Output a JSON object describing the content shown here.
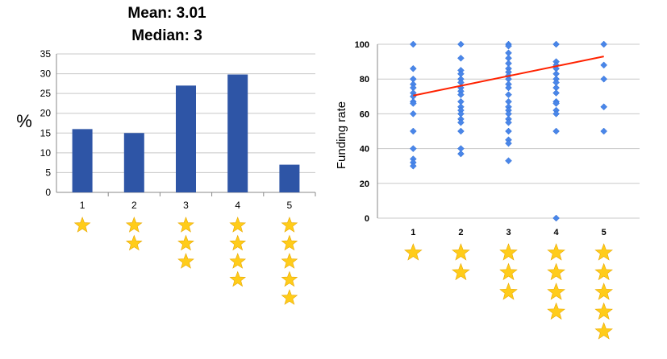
{
  "colors": {
    "bar": "#2e55a6",
    "scatter_point": "#4a86e8",
    "trend_line": "#ff2200",
    "star": "#ffcc1a",
    "star_stroke": "#e8a800",
    "gridline": "#c8c8c8",
    "axis": "#888888",
    "text": "#000000"
  },
  "star_icon": "star-icon",
  "chart_data": [
    {
      "type": "bar",
      "title_lines": [
        "Mean: 3.01",
        "Median: 3"
      ],
      "xlabel": "",
      "ylabel": "%",
      "categories": [
        "1",
        "2",
        "3",
        "4",
        "5"
      ],
      "values": [
        16,
        15,
        27,
        29.8,
        7
      ],
      "ylim": [
        0,
        35
      ],
      "yticks": [
        0,
        5,
        10,
        15,
        20,
        25,
        30,
        35
      ],
      "grid": true,
      "legend": "none",
      "star_counts": [
        1,
        2,
        3,
        4,
        5
      ]
    },
    {
      "type": "scatter",
      "xlabel": "",
      "ylabel": "Funding rate",
      "categories": [
        "1",
        "2",
        "3",
        "4",
        "5"
      ],
      "ylim": [
        0,
        100
      ],
      "yticks": [
        0,
        20,
        40,
        60,
        80,
        100
      ],
      "grid": true,
      "legend": "none",
      "star_counts": [
        1,
        2,
        3,
        4,
        5
      ],
      "points": [
        {
          "x": 1,
          "y": [
            100,
            86,
            80,
            77,
            75,
            72,
            70,
            67,
            66,
            60,
            50,
            40,
            34,
            32,
            30
          ]
        },
        {
          "x": 2,
          "y": [
            100,
            92,
            85,
            83,
            80,
            78,
            75,
            73,
            71,
            67,
            64,
            62,
            60,
            57,
            55,
            50,
            40,
            37
          ]
        },
        {
          "x": 3,
          "y": [
            100,
            99,
            95,
            92,
            89,
            86,
            84,
            82,
            80,
            77,
            75,
            71,
            67,
            64,
            62,
            60,
            57,
            55,
            50,
            45,
            43,
            33
          ]
        },
        {
          "x": 4,
          "y": [
            100,
            90,
            88,
            86,
            83,
            80,
            78,
            75,
            72,
            67,
            66,
            62,
            60,
            50,
            0
          ]
        },
        {
          "x": 5,
          "y": [
            100,
            88,
            80,
            64,
            50
          ]
        }
      ],
      "trend_line": {
        "x": [
          1,
          5
        ],
        "y": [
          70.5,
          93
        ]
      }
    }
  ]
}
